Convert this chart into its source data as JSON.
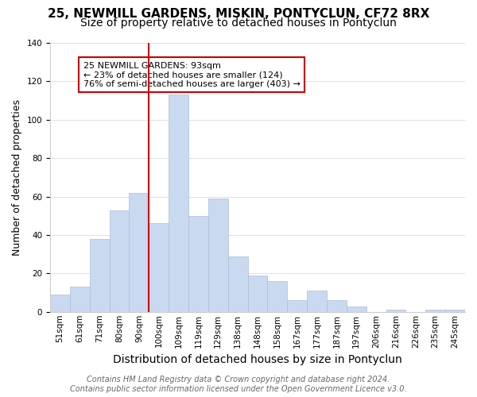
{
  "title": "25, NEWMILL GARDENS, MISKIN, PONTYCLUN, CF72 8RX",
  "subtitle": "Size of property relative to detached houses in Pontyclun",
  "xlabel": "Distribution of detached houses by size in Pontyclun",
  "ylabel": "Number of detached properties",
  "categories": [
    "51sqm",
    "61sqm",
    "71sqm",
    "80sqm",
    "90sqm",
    "100sqm",
    "109sqm",
    "119sqm",
    "129sqm",
    "138sqm",
    "148sqm",
    "158sqm",
    "167sqm",
    "177sqm",
    "187sqm",
    "197sqm",
    "206sqm",
    "216sqm",
    "226sqm",
    "235sqm",
    "245sqm"
  ],
  "values": [
    9,
    13,
    38,
    53,
    62,
    46,
    113,
    50,
    59,
    29,
    19,
    16,
    6,
    11,
    6,
    3,
    0,
    1,
    0,
    1,
    1
  ],
  "bar_color": "#c8d9f0",
  "bar_edge_color": "#aabfd8",
  "reference_line_x": 4.5,
  "reference_line_color": "#cc0000",
  "annotation_title": "25 NEWMILL GARDENS: 93sqm",
  "annotation_line1": "← 23% of detached houses are smaller (124)",
  "annotation_line2": "76% of semi-detached houses are larger (403) →",
  "annotation_box_color": "#ffffff",
  "annotation_box_edge": "#cc0000",
  "ylim": [
    0,
    140
  ],
  "footer1": "Contains HM Land Registry data © Crown copyright and database right 2024.",
  "footer2": "Contains public sector information licensed under the Open Government Licence v3.0.",
  "background_color": "#ffffff",
  "grid_color": "#e0e0e0",
  "title_fontsize": 11,
  "subtitle_fontsize": 10,
  "xlabel_fontsize": 10,
  "ylabel_fontsize": 9,
  "tick_fontsize": 7.5,
  "footer_fontsize": 7
}
